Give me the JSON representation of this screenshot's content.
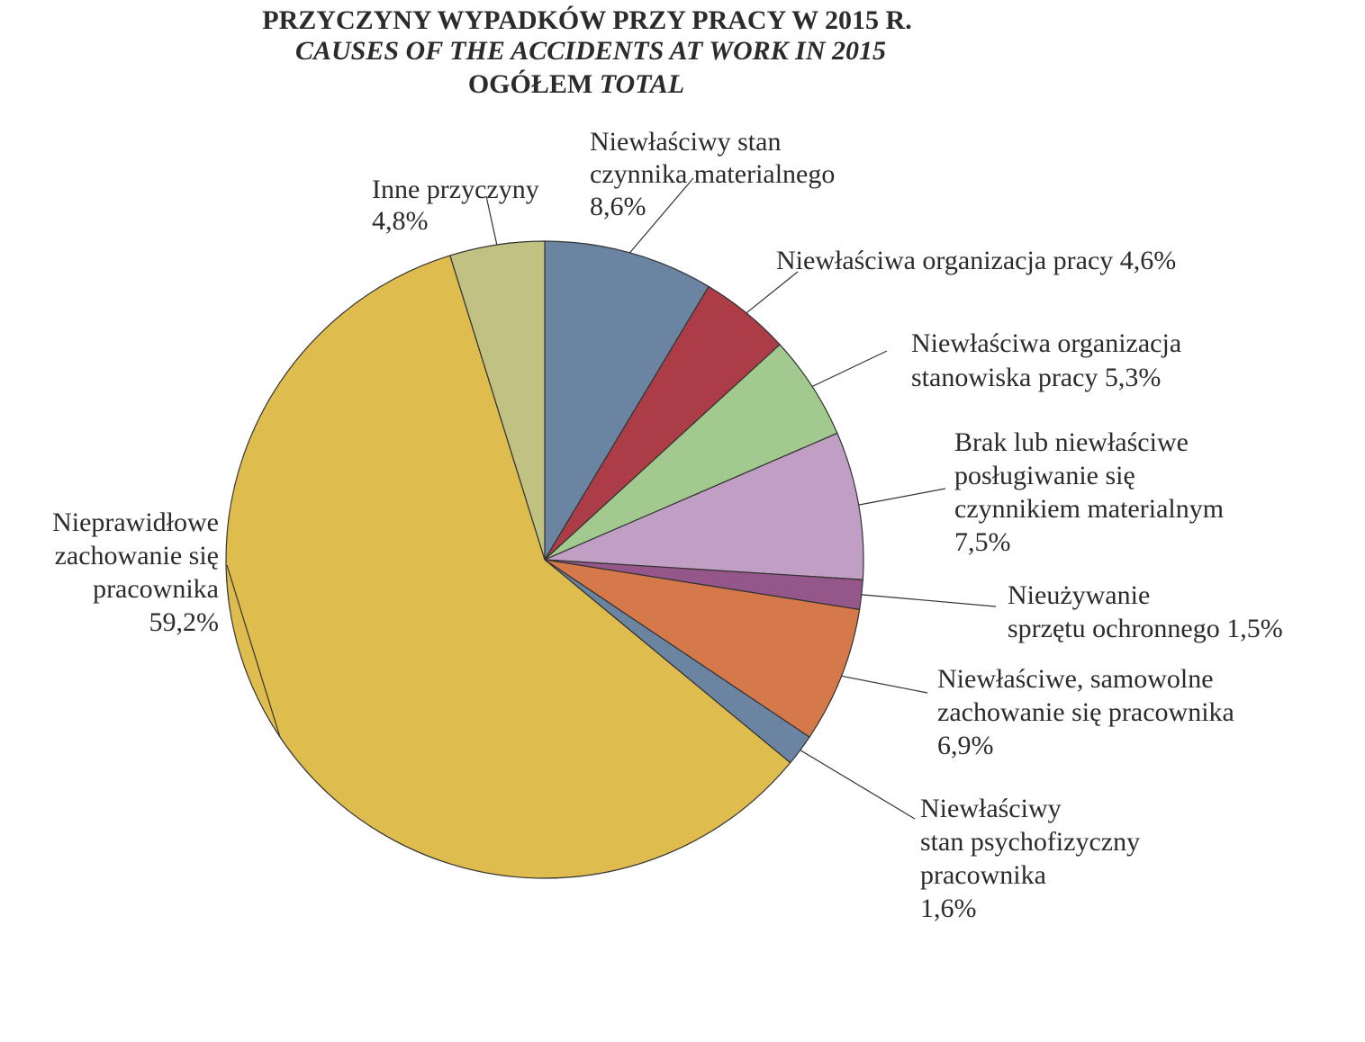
{
  "chart_data": {
    "type": "pie",
    "title": {
      "line1": "PRZYCZYNY WYPADKÓW PRZY PRACY W 2015 R.",
      "line2": "CAUSES OF THE ACCIDENTS AT WORK IN 2015",
      "line3_a": "OGÓŁEM",
      "line3_b": "TOTAL"
    },
    "slices": [
      {
        "lines": [
          "Niewłaściwy stan",
          "czynnika materialnego",
          "8,6%"
        ],
        "value": 8.6,
        "color": "#6a84a2"
      },
      {
        "lines": [
          "Niewłaściwa organizacja pracy 4,6%"
        ],
        "value": 4.6,
        "color": "#ac3d47"
      },
      {
        "lines": [
          "Niewłaściwa organizacja",
          "stanowiska pracy 5,3%"
        ],
        "value": 5.3,
        "color": "#a2c98e"
      },
      {
        "lines": [
          "Brak lub niewłaściwe",
          "posługiwanie się",
          "czynnikiem materialnym",
          "7,5%"
        ],
        "value": 7.5,
        "color": "#c19fc4"
      },
      {
        "lines": [
          "Nieużywanie",
          "sprzętu ochronnego 1,5%"
        ],
        "value": 1.5,
        "color": "#955689"
      },
      {
        "lines": [
          "Niewłaściwe, samowolne",
          "zachowanie się pracownika",
          "6,9%"
        ],
        "value": 6.9,
        "color": "#d5784a"
      },
      {
        "lines": [
          "Niewłaściwy",
          "stan psychofizyczny",
          "pracownika",
          "1,6%"
        ],
        "value": 1.6,
        "color": "#6a84a2"
      },
      {
        "lines": [
          "Nieprawidłowe",
          "zachowanie się",
          "pracownika",
          "59,2%"
        ],
        "value": 59.2,
        "color": "#dfbc4e"
      },
      {
        "lines": [
          "Inne przyczyny",
          "4,8%"
        ],
        "value": 4.8,
        "color": "#c1c281"
      }
    ]
  }
}
